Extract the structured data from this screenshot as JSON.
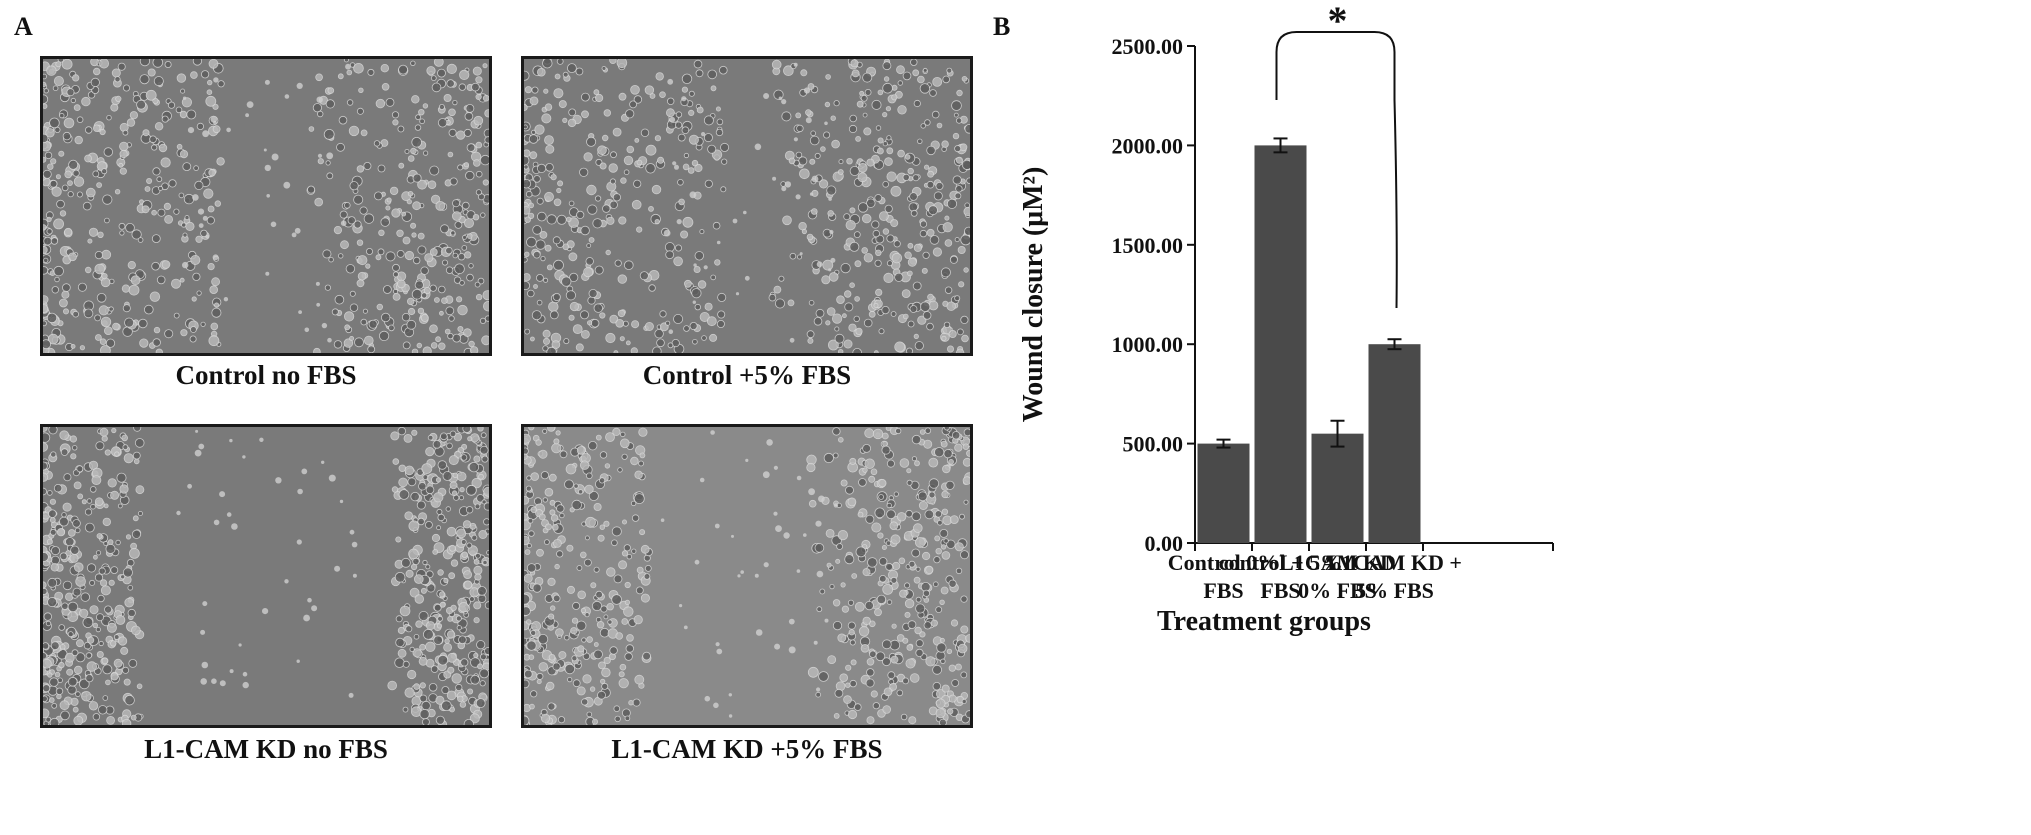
{
  "panel_a": {
    "letter": "A",
    "images": [
      {
        "caption": "Control no FBS"
      },
      {
        "caption": "Control +5% FBS"
      },
      {
        "caption": "L1-CAM KD no FBS"
      },
      {
        "caption": "L1-CAM KD +5% FBS"
      }
    ]
  },
  "panel_b": {
    "letter": "B"
  },
  "chart_data": {
    "type": "bar",
    "categories": [
      [
        "Control 0%",
        "FBS"
      ],
      [
        "control + 5%",
        "FBS"
      ],
      [
        "L1CAM KD",
        "0% FBS"
      ],
      [
        "L1CAM KD +",
        "5% FBS"
      ]
    ],
    "values": [
      500,
      2000,
      550,
      1000
    ],
    "error": [
      20,
      35,
      65,
      25
    ],
    "xlabel": "Treatment groups",
    "ylabel": "Wound closure (μM²)",
    "ylim": [
      0,
      2500
    ],
    "yticks": [
      0,
      500,
      1000,
      1500,
      2000,
      2500
    ],
    "ytick_labels": [
      "0.00",
      "500.00",
      "1000.00",
      "1500.00",
      "2000.00",
      "2500.00"
    ],
    "significance": {
      "from_category": 1,
      "to_category": 3,
      "label": "*"
    },
    "bar_color": "#4a4a4a",
    "grid": false
  }
}
